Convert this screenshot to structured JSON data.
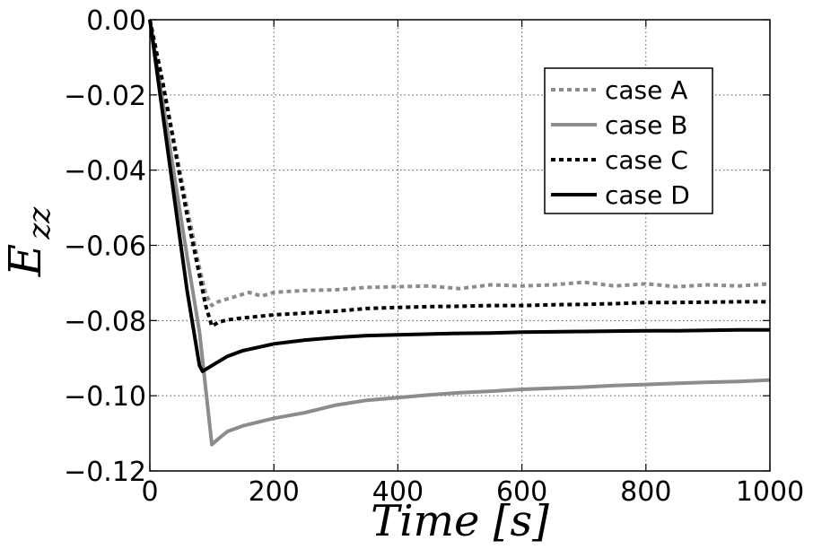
{
  "chart_data": {
    "type": "line",
    "title": "",
    "xlabel": "Time [s]",
    "ylabel_main": "E",
    "ylabel_sub": "zz",
    "xlim": [
      0,
      1000
    ],
    "ylim": [
      -0.12,
      0.0
    ],
    "grid": true,
    "legend_position": "upper-right",
    "x_ticks": [
      0,
      200,
      400,
      600,
      800,
      1000
    ],
    "x_tick_labels": [
      "0",
      "200",
      "400",
      "600",
      "800",
      "1000"
    ],
    "y_ticks": [
      0.0,
      -0.02,
      -0.04,
      -0.06,
      -0.08,
      -0.1,
      -0.12
    ],
    "y_tick_labels": [
      "0.00",
      "−0.02",
      "−0.04",
      "−0.06",
      "−0.08",
      "−0.10",
      "−0.12"
    ],
    "series": [
      {
        "name": "case A",
        "color": "#8c8c8c",
        "style": "dotted",
        "x": [
          0,
          20,
          40,
          60,
          80,
          90,
          100,
          110,
          120,
          140,
          160,
          180,
          200,
          250,
          300,
          350,
          400,
          450,
          500,
          550,
          600,
          650,
          700,
          750,
          800,
          850,
          900,
          950,
          1000
        ],
        "y": [
          0.0,
          -0.016,
          -0.033,
          -0.05,
          -0.066,
          -0.073,
          -0.076,
          -0.075,
          -0.0745,
          -0.0735,
          -0.0725,
          -0.0735,
          -0.0725,
          -0.072,
          -0.0718,
          -0.0712,
          -0.071,
          -0.0708,
          -0.0715,
          -0.0705,
          -0.0708,
          -0.0705,
          -0.0698,
          -0.0708,
          -0.0702,
          -0.071,
          -0.0705,
          -0.0708,
          -0.0702
        ]
      },
      {
        "name": "case B",
        "color": "#8c8c8c",
        "style": "solid",
        "x": [
          0,
          20,
          40,
          60,
          80,
          90,
          100,
          110,
          125,
          150,
          200,
          250,
          300,
          350,
          400,
          450,
          500,
          550,
          600,
          650,
          700,
          750,
          800,
          850,
          900,
          950,
          1000
        ],
        "y": [
          0.0,
          -0.021,
          -0.042,
          -0.063,
          -0.083,
          -0.098,
          -0.113,
          -0.1115,
          -0.1095,
          -0.108,
          -0.106,
          -0.1045,
          -0.1025,
          -0.1012,
          -0.1005,
          -0.0998,
          -0.0992,
          -0.0988,
          -0.0983,
          -0.098,
          -0.0977,
          -0.0973,
          -0.097,
          -0.0967,
          -0.0964,
          -0.0962,
          -0.0958
        ]
      },
      {
        "name": "case C",
        "color": "#000000",
        "style": "dotted",
        "x": [
          0,
          20,
          40,
          60,
          80,
          90,
          100,
          110,
          125,
          150,
          200,
          250,
          300,
          350,
          400,
          450,
          500,
          550,
          600,
          650,
          700,
          750,
          800,
          850,
          900,
          950,
          1000
        ],
        "y": [
          0.0,
          -0.016,
          -0.034,
          -0.052,
          -0.068,
          -0.076,
          -0.0815,
          -0.0805,
          -0.0798,
          -0.0793,
          -0.0785,
          -0.078,
          -0.0775,
          -0.0768,
          -0.0765,
          -0.0763,
          -0.0762,
          -0.076,
          -0.076,
          -0.0758,
          -0.0757,
          -0.0755,
          -0.0752,
          -0.0752,
          -0.0751,
          -0.075,
          -0.075
        ]
      },
      {
        "name": "case D",
        "color": "#000000",
        "style": "solid",
        "x": [
          0,
          20,
          40,
          60,
          80,
          85,
          100,
          125,
          150,
          200,
          250,
          300,
          350,
          400,
          450,
          500,
          550,
          600,
          650,
          700,
          750,
          800,
          850,
          900,
          950,
          1000
        ],
        "y": [
          0.0,
          -0.024,
          -0.048,
          -0.072,
          -0.092,
          -0.0935,
          -0.092,
          -0.0895,
          -0.088,
          -0.0862,
          -0.0852,
          -0.0845,
          -0.084,
          -0.0838,
          -0.0836,
          -0.0834,
          -0.0833,
          -0.0831,
          -0.083,
          -0.0829,
          -0.0828,
          -0.0827,
          -0.0827,
          -0.0826,
          -0.0825,
          -0.0825
        ]
      }
    ]
  }
}
